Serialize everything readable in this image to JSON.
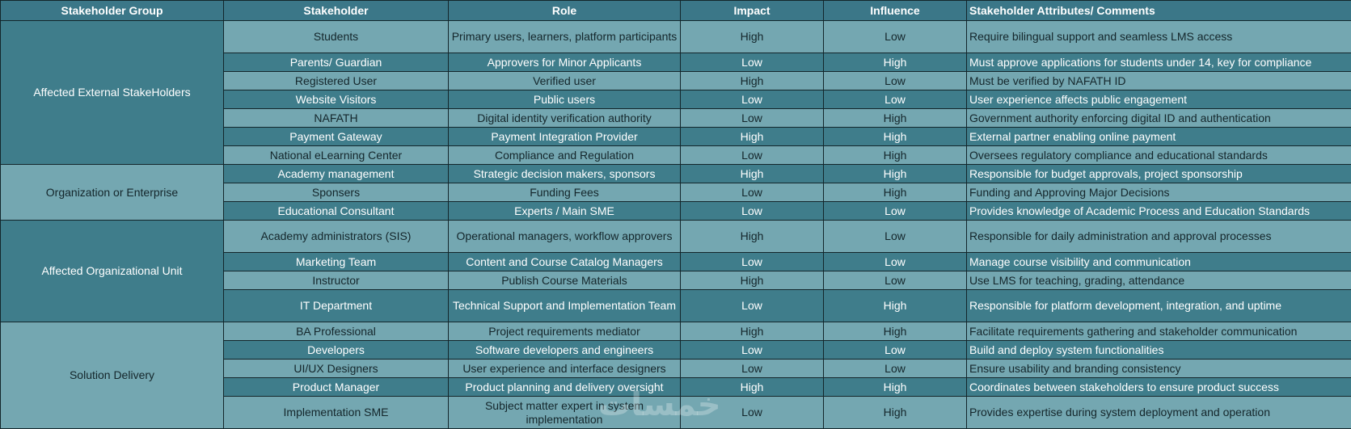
{
  "headers": {
    "group": "Stakeholder Group",
    "stakeholder": "Stakeholder",
    "role": "Role",
    "impact": "Impact",
    "influence": "Influence",
    "attributes": "Stakeholder Attributes/ Comments"
  },
  "groups": [
    {
      "name": "Affected External StakeHolders",
      "rows": [
        {
          "stakeholder": "Students",
          "role": "Primary users, learners, platform participants",
          "impact": "High",
          "influence": "Low",
          "attributes": "Require bilingual support and seamless LMS access"
        },
        {
          "stakeholder": "Parents/ Guardian",
          "role": "Approvers for Minor Applicants",
          "impact": "Low",
          "influence": "High",
          "attributes": "Must approve applications for students under 14, key for compliance"
        },
        {
          "stakeholder": "Registered User",
          "role": "Verified user",
          "impact": "High",
          "influence": "Low",
          "attributes": "Must be verified by NAFATH ID"
        },
        {
          "stakeholder": "Website Visitors",
          "role": "Public users",
          "impact": "Low",
          "influence": "Low",
          "attributes": "User experience affects public engagement"
        },
        {
          "stakeholder": "NAFATH",
          "role": "Digital identity verification authority",
          "impact": "Low",
          "influence": "High",
          "attributes": "Government authority enforcing digital ID and authentication"
        },
        {
          "stakeholder": "Payment Gateway",
          "role": "Payment Integration Provider",
          "impact": "High",
          "influence": "High",
          "attributes": "External partner enabling online payment"
        },
        {
          "stakeholder": "National eLearning Center",
          "role": "Compliance and Regulation",
          "impact": "Low",
          "influence": "High",
          "attributes": "Oversees regulatory compliance and educational standards"
        }
      ]
    },
    {
      "name": "Organization or Enterprise",
      "rows": [
        {
          "stakeholder": "Academy management",
          "role": "Strategic decision makers, sponsors",
          "impact": "High",
          "influence": "High",
          "attributes": "Responsible for budget approvals, project sponsorship"
        },
        {
          "stakeholder": "Sponsers",
          "role": "Funding Fees",
          "impact": "Low",
          "influence": "High",
          "attributes": "Funding and Approving Major Decisions"
        },
        {
          "stakeholder": "Educational Consultant",
          "role": "Experts / Main SME",
          "impact": "Low",
          "influence": "Low",
          "attributes": "Provides knowledge of Academic Process and Education Standards"
        }
      ]
    },
    {
      "name": "Affected Organizational Unit",
      "rows": [
        {
          "stakeholder": "Academy administrators (SIS)",
          "role": "Operational managers, workflow approvers",
          "impact": "High",
          "influence": "Low",
          "attributes": "Responsible for daily administration and approval processes"
        },
        {
          "stakeholder": "Marketing Team",
          "role": "Content and Course Catalog Managers",
          "impact": "Low",
          "influence": "Low",
          "attributes": "Manage course visibility and communication"
        },
        {
          "stakeholder": "Instructor",
          "role": "Publish Course Materials",
          "impact": "High",
          "influence": "Low",
          "attributes": "Use LMS for teaching, grading, attendance"
        },
        {
          "stakeholder": "IT Department",
          "role": "Technical Support and Implementation Team",
          "impact": "Low",
          "influence": "High",
          "attributes": "Responsible for platform development, integration, and uptime"
        }
      ]
    },
    {
      "name": "Solution Delivery",
      "rows": [
        {
          "stakeholder": "BA Professional",
          "role": "Project requirements mediator",
          "impact": "High",
          "influence": "High",
          "attributes": "Facilitate requirements gathering and stakeholder communication"
        },
        {
          "stakeholder": "Developers",
          "role": "Software developers and engineers",
          "impact": "Low",
          "influence": "Low",
          "attributes": "Build and deploy system functionalities"
        },
        {
          "stakeholder": "UI/UX Designers",
          "role": "User experience and interface designers",
          "impact": "Low",
          "influence": "Low",
          "attributes": "Ensure usability and branding consistency"
        },
        {
          "stakeholder": "Product Manager",
          "role": "Product planning and delivery oversight",
          "impact": "High",
          "influence": "High",
          "attributes": "Coordinates between stakeholders to ensure product success"
        },
        {
          "stakeholder": "Implementation SME",
          "role": "Subject matter expert in system implementation",
          "impact": "Low",
          "influence": "High",
          "attributes": "Provides expertise during system deployment and operation"
        }
      ]
    }
  ],
  "watermark": "خمسات"
}
